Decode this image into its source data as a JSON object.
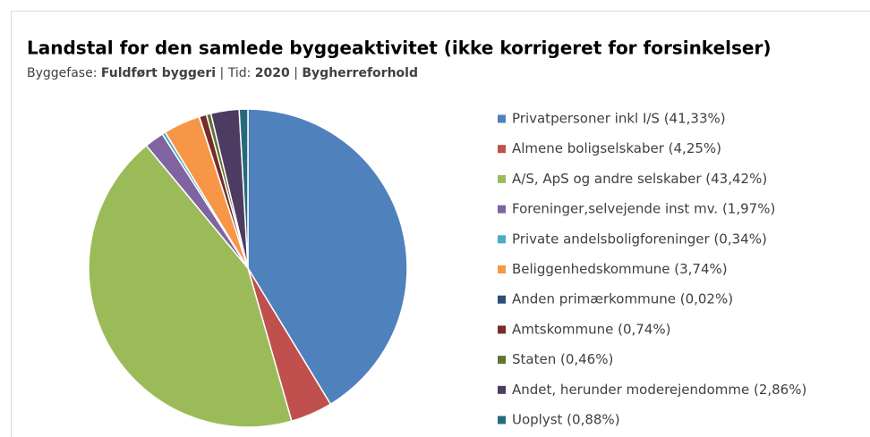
{
  "chart_data": {
    "type": "pie",
    "title": "Landstal for den samlede byggeaktivitet (ikke korrigeret for forsinkelser)",
    "subtitle": [
      {
        "text": "Byggefase: ",
        "bold": false
      },
      {
        "text": "Fuldført byggeri",
        "bold": true
      },
      {
        "text": " | Tid: ",
        "bold": false
      },
      {
        "text": "2020",
        "bold": true
      },
      {
        "text": " | ",
        "bold": false
      },
      {
        "text": "Bygherreforhold",
        "bold": true
      }
    ],
    "categories": [
      "Privatpersoner inkl I/S (41,33%)",
      "Almene boligselskaber (4,25%)",
      "A/S, ApS og andre selskaber (43,42%)",
      "Foreninger,selvejende inst mv. (1,97%)",
      "Private andelsboligforeninger (0,34%)",
      "Beliggenhedskommune (3,74%)",
      "Anden primærkommune (0,02%)",
      "Amtskommune (0,74%)",
      "Staten (0,46%)",
      "Andet, herunder moderejendomme (2,86%)",
      "Uoplyst (0,88%)"
    ],
    "values": [
      41.33,
      4.25,
      43.42,
      1.97,
      0.34,
      3.74,
      0.02,
      0.74,
      0.46,
      2.86,
      0.88
    ],
    "colors": [
      "#4f81bd",
      "#c0504d",
      "#9bbb59",
      "#8064a2",
      "#4bacc6",
      "#f79646",
      "#2c4d75",
      "#772c2a",
      "#5f7530",
      "#4d3b62",
      "#276a7c"
    ],
    "legend": "right"
  }
}
